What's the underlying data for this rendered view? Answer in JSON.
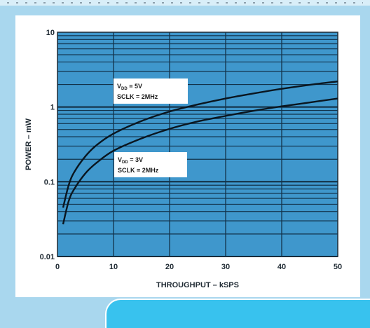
{
  "chart_data": {
    "type": "line",
    "title": "",
    "xlabel": "THROUGHPUT – kSPS",
    "ylabel": "POWER – mW",
    "xlim": [
      0,
      50
    ],
    "ylim": [
      0.01,
      10
    ],
    "y_scale": "log",
    "grid": true,
    "x_ticks": [
      "0",
      "10",
      "20",
      "30",
      "40",
      "50"
    ],
    "y_ticks": [
      "0.01",
      "0.1",
      "1",
      "10"
    ],
    "series": [
      {
        "name": "",
        "annotation_line1_main": "V",
        "annotation_line1_sub": "DD",
        "annotation_line1_rest": " = 5V",
        "annotation_line2": "SCLK = 2MHz",
        "x": [
          1,
          2,
          3,
          5,
          7,
          10,
          15,
          20,
          25,
          30,
          35,
          40,
          45,
          50
        ],
        "y": [
          0.045,
          0.09,
          0.135,
          0.22,
          0.31,
          0.44,
          0.65,
          0.87,
          1.08,
          1.3,
          1.52,
          1.75,
          1.98,
          2.2
        ]
      },
      {
        "name": "",
        "annotation_line1_main": "V",
        "annotation_line1_sub": "DD",
        "annotation_line1_rest": " = 3V",
        "annotation_line2": "SCLK = 2MHz",
        "x": [
          1,
          2,
          3,
          5,
          7,
          10,
          15,
          20,
          25,
          30,
          35,
          40,
          45,
          50
        ],
        "y": [
          0.027,
          0.055,
          0.08,
          0.13,
          0.18,
          0.26,
          0.38,
          0.51,
          0.64,
          0.76,
          0.89,
          1.02,
          1.15,
          1.3
        ]
      }
    ]
  }
}
